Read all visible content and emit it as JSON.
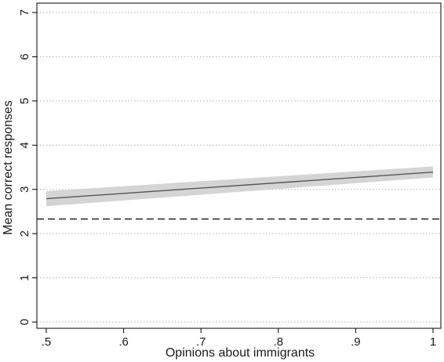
{
  "chart_data": {
    "type": "line",
    "xlabel": "Opinions about immigrants",
    "ylabel": "Mean correct responses",
    "xlim": [
      0.5,
      1.0
    ],
    "ylim": [
      0,
      7
    ],
    "x_ticks": [
      0.5,
      0.6,
      0.7,
      0.8,
      0.9,
      1.0
    ],
    "x_tick_labels": [
      ".5",
      ".6",
      ".7",
      ".8",
      ".9",
      "1"
    ],
    "y_ticks": [
      0,
      1,
      2,
      3,
      4,
      5,
      6,
      7
    ],
    "y_tick_labels": [
      "0",
      "1",
      "2",
      "3",
      "4",
      "5",
      "6",
      "7"
    ],
    "grid": "horizontal dotted",
    "series": [
      {
        "x": [
          0.5,
          1.0
        ],
        "y": [
          2.79,
          3.39
        ],
        "ci_lower": [
          2.62,
          3.27
        ],
        "ci_upper": [
          2.96,
          3.52
        ]
      }
    ],
    "reference_line": {
      "y": 2.33,
      "style": "dashed"
    },
    "colors": {
      "line": "#555555",
      "band": "#d4d4d4",
      "reference": "#000000",
      "grid": "#b0b0b0"
    }
  }
}
